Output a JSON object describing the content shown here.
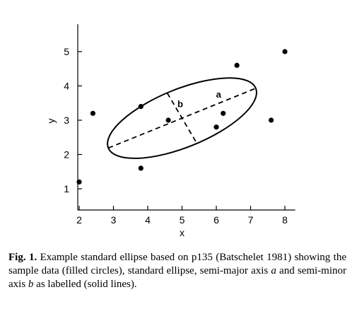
{
  "chart_data": {
    "type": "scatter",
    "xlabel": "x",
    "ylabel": "y",
    "xlim": [
      1.7,
      8.3
    ],
    "ylim": [
      0.7,
      5.8
    ],
    "x_ticks": [
      2,
      3,
      4,
      5,
      6,
      7,
      8
    ],
    "y_ticks": [
      1,
      2,
      3,
      4,
      5
    ],
    "grid": false,
    "legend": "none",
    "points": [
      {
        "x": 2.0,
        "y": 1.2
      },
      {
        "x": 2.4,
        "y": 3.2
      },
      {
        "x": 3.8,
        "y": 3.4
      },
      {
        "x": 3.8,
        "y": 1.6
      },
      {
        "x": 4.6,
        "y": 3.0
      },
      {
        "x": 6.0,
        "y": 2.8
      },
      {
        "x": 6.2,
        "y": 3.2
      },
      {
        "x": 6.6,
        "y": 4.6
      },
      {
        "x": 7.6,
        "y": 3.0
      },
      {
        "x": 8.0,
        "y": 5.0
      }
    ],
    "ellipse": {
      "center": {
        "x": 5.0,
        "y": 3.06
      },
      "major_axis_end": {
        "x": 7.15,
        "y": 3.93
      },
      "minor_axis_end": {
        "x": 5.43,
        "y": 2.33
      }
    },
    "annotations": {
      "semi_major": "a",
      "semi_minor": "b"
    }
  },
  "caption": {
    "fig_label": "Fig. 1.",
    "text_1": " Example standard ellipse based on p135 (Batschelet 1981) showing the sample data (filled circles), standard ellipse, semi-major axis ",
    "a": "a",
    "text_2": " and semi-minor axis ",
    "b": "b",
    "text_3": " as labelled (solid lines)."
  }
}
